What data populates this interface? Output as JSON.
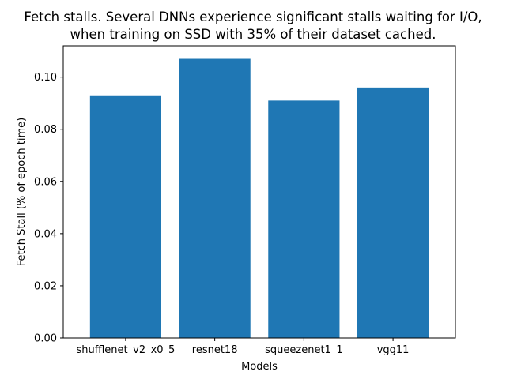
{
  "chart_data": {
    "type": "bar",
    "title_lines": [
      "Fetch stalls. Several DNNs experience significant stalls waiting for I/O,",
      "when training on SSD with 35% of their dataset cached."
    ],
    "xlabel": "Models",
    "ylabel": "Fetch Stall (% of epoch time)",
    "categories": [
      "shufflenet_v2_x0_5",
      "resnet18",
      "squeezenet1_1",
      "vgg11"
    ],
    "values": [
      0.093,
      0.107,
      0.091,
      0.096
    ],
    "ylim": [
      0,
      0.112
    ],
    "yticks": [
      "0.00",
      "0.02",
      "0.04",
      "0.06",
      "0.08",
      "0.10"
    ],
    "bar_color": "#1f77b4",
    "grid": false
  }
}
